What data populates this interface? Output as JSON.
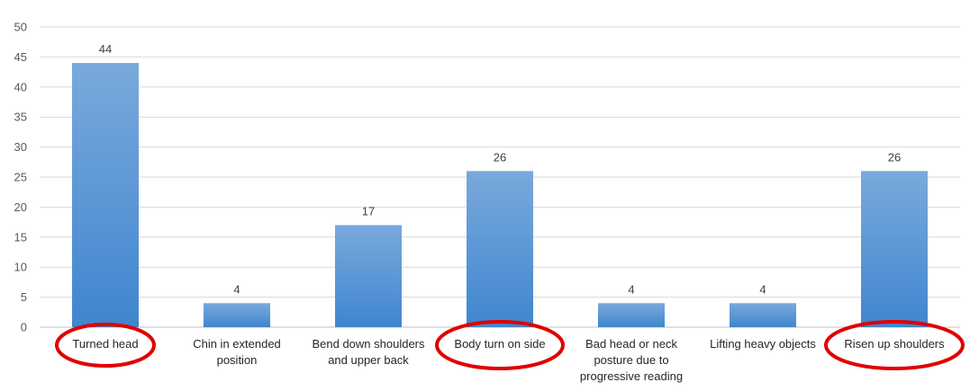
{
  "chart_data": {
    "type": "bar",
    "categories": [
      "Turned head",
      "Chin in extended position",
      "Bend down shoulders and upper back",
      "Body turn on side",
      "Bad head or neck posture due to progressive reading",
      "Lifting heavy objects",
      "Risen up shoulders"
    ],
    "category_lines": [
      [
        "Turned head"
      ],
      [
        "Chin in extended",
        "position"
      ],
      [
        "Bend down shoulders",
        "and upper back"
      ],
      [
        "Body turn on side"
      ],
      [
        "Bad head or neck",
        "posture due to",
        "progressive reading"
      ],
      [
        "Lifting heavy objects"
      ],
      [
        "Risen up shoulders"
      ]
    ],
    "values": [
      44,
      4,
      17,
      26,
      4,
      4,
      26
    ],
    "title": "",
    "xlabel": "",
    "ylabel": "",
    "ylim": [
      0,
      50
    ],
    "yticks": [
      0,
      5,
      10,
      15,
      20,
      25,
      30,
      35,
      40,
      45,
      50
    ],
    "grid": true,
    "legend": "none",
    "data_labels": true,
    "highlighted_categories": [
      "Turned head",
      "Body turn on side",
      "Risen up shoulders"
    ],
    "colors": {
      "bar_top": "#7aa9dc",
      "bar_bottom": "#3f86cf",
      "grid": "#d9d9d9",
      "axis": "#bfbfbf",
      "highlight": "#e00000"
    }
  }
}
